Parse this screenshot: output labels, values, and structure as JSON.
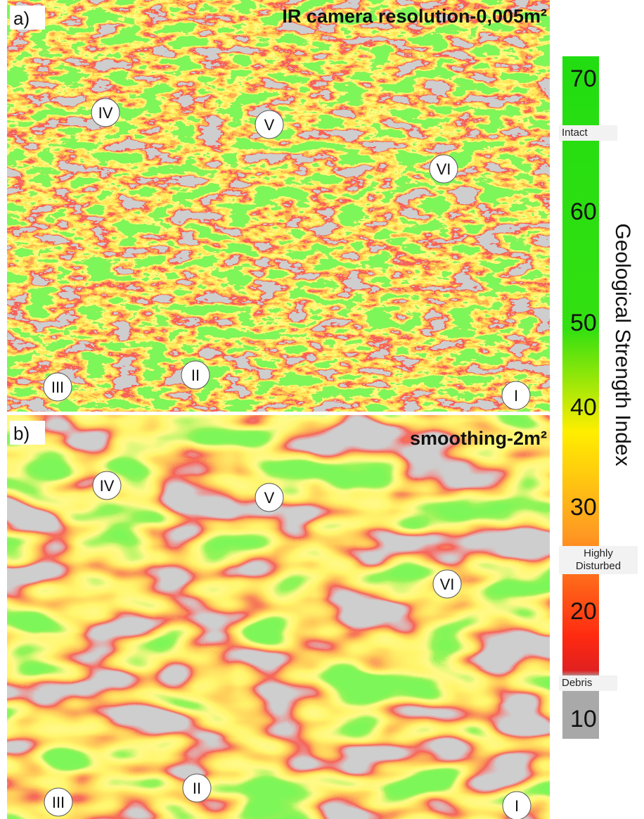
{
  "panels": [
    {
      "letter": "a)",
      "title": "IR camera resolution-0,005m²",
      "markers": [
        "IV",
        "V",
        "VI",
        "III",
        "II",
        "I"
      ]
    },
    {
      "letter": "b)",
      "title": "smoothing-2m²",
      "markers": [
        "IV",
        "V",
        "VI",
        "III",
        "II",
        "I"
      ]
    }
  ],
  "colorbar": {
    "title": "Geological Strength Index",
    "ticks": [
      "70",
      "60",
      "50",
      "40",
      "30",
      "20",
      "10"
    ],
    "classes": [
      "Intact",
      "Highly Disturbed",
      "Debris"
    ]
  }
}
